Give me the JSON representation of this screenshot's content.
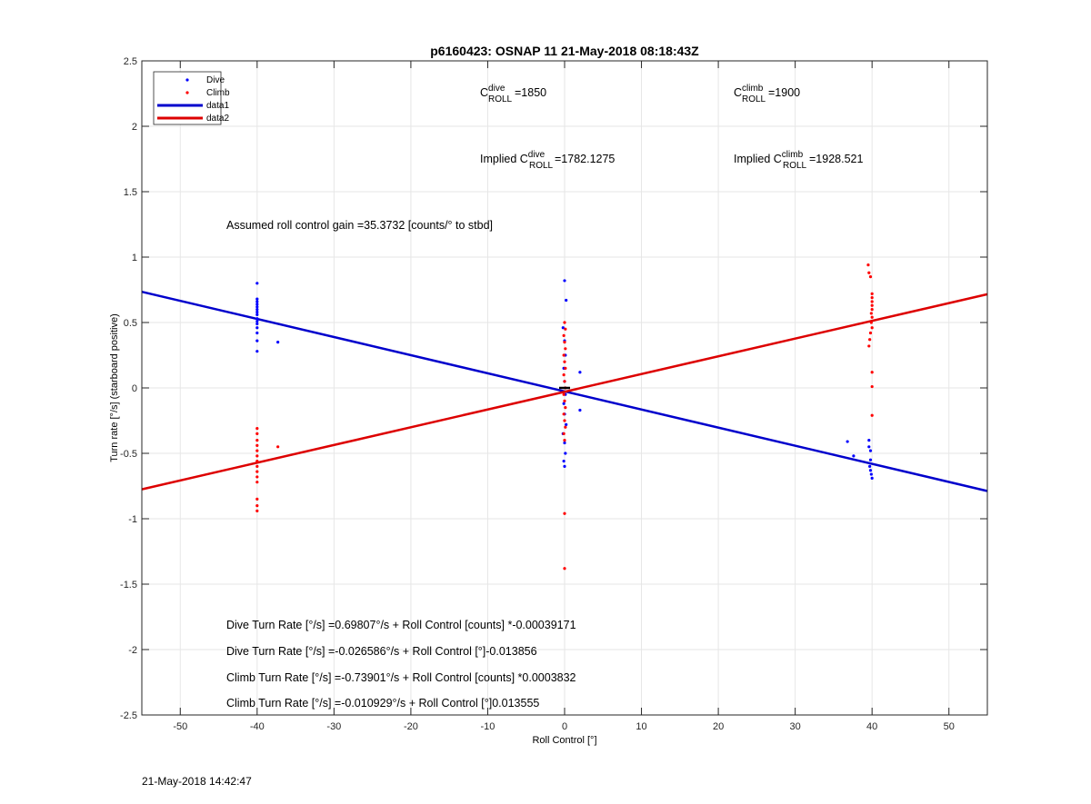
{
  "chart_data": {
    "type": "scatter",
    "title": "p6160423: OSNAP 11 21-May-2018 08:18:43Z",
    "xlabel": "Roll Control [°]",
    "ylabel": "Turn rate [°/s] (starboard positive)",
    "xlim": [
      -55,
      55
    ],
    "ylim": [
      -2.5,
      2.5
    ],
    "xticks": [
      -50,
      -40,
      -30,
      -20,
      -10,
      0,
      10,
      20,
      30,
      40,
      50
    ],
    "yticks": [
      -2.5,
      -2,
      -1.5,
      -1,
      -0.5,
      0,
      0.5,
      1,
      1.5,
      2,
      2.5
    ],
    "grid": true,
    "legend_position": "top-left",
    "series": [
      {
        "name": "Dive",
        "kind": "points",
        "color": "#0000ff",
        "points": [
          [
            -40,
            0.8
          ],
          [
            -40,
            0.68
          ],
          [
            -40,
            0.66
          ],
          [
            -40,
            0.64
          ],
          [
            -40,
            0.62
          ],
          [
            -40,
            0.6
          ],
          [
            -40,
            0.58
          ],
          [
            -40,
            0.56
          ],
          [
            -40,
            0.53
          ],
          [
            -40,
            0.51
          ],
          [
            -40,
            0.49
          ],
          [
            -40,
            0.46
          ],
          [
            -40,
            0.42
          ],
          [
            -40,
            0.36
          ],
          [
            -40,
            0.28
          ],
          [
            -37.3,
            0.35
          ],
          [
            0,
            0.82
          ],
          [
            0.2,
            0.67
          ],
          [
            -0.2,
            0.46
          ],
          [
            0,
            0.36
          ],
          [
            0.1,
            0.25
          ],
          [
            -0.1,
            0.15
          ],
          [
            0,
            0.05
          ],
          [
            0.1,
            -0.05
          ],
          [
            -0.1,
            -0.12
          ],
          [
            0,
            -0.2
          ],
          [
            0.2,
            -0.28
          ],
          [
            -0.2,
            -0.35
          ],
          [
            0,
            -0.42
          ],
          [
            0.1,
            -0.5
          ],
          [
            -0.1,
            -0.56
          ],
          [
            0,
            -0.6
          ],
          [
            2,
            0.12
          ],
          [
            2,
            -0.17
          ],
          [
            36.8,
            -0.41
          ],
          [
            37.6,
            -0.52
          ],
          [
            39.6,
            -0.4
          ],
          [
            39.6,
            -0.45
          ],
          [
            39.8,
            -0.48
          ],
          [
            39.8,
            -0.55
          ],
          [
            39.7,
            -0.6
          ],
          [
            39.8,
            -0.63
          ],
          [
            39.9,
            -0.66
          ],
          [
            40,
            -0.69
          ]
        ]
      },
      {
        "name": "Climb",
        "kind": "points",
        "color": "#ff0000",
        "points": [
          [
            -40,
            -0.31
          ],
          [
            -40,
            -0.35
          ],
          [
            -40,
            -0.4
          ],
          [
            -40,
            -0.44
          ],
          [
            -40,
            -0.48
          ],
          [
            -40,
            -0.52
          ],
          [
            -40,
            -0.56
          ],
          [
            -40,
            -0.6
          ],
          [
            -40,
            -0.64
          ],
          [
            -40,
            -0.68
          ],
          [
            -40,
            -0.72
          ],
          [
            -40,
            -0.85
          ],
          [
            -40,
            -0.9
          ],
          [
            -40,
            -0.94
          ],
          [
            -37.3,
            -0.45
          ],
          [
            0,
            0.5
          ],
          [
            0.1,
            0.45
          ],
          [
            -0.1,
            0.4
          ],
          [
            0,
            0.35
          ],
          [
            0.1,
            0.3
          ],
          [
            -0.1,
            0.25
          ],
          [
            0,
            0.2
          ],
          [
            0.1,
            0.15
          ],
          [
            -0.1,
            0.1
          ],
          [
            0,
            0.05
          ],
          [
            0.1,
            0
          ],
          [
            -0.1,
            -0.05
          ],
          [
            0,
            -0.1
          ],
          [
            0.1,
            -0.15
          ],
          [
            -0.1,
            -0.2
          ],
          [
            0,
            -0.25
          ],
          [
            0.1,
            -0.3
          ],
          [
            -0.1,
            -0.35
          ],
          [
            0,
            -0.4
          ],
          [
            0,
            -0.96
          ],
          [
            0,
            -1.38
          ],
          [
            39.5,
            0.94
          ],
          [
            39.6,
            0.88
          ],
          [
            39.8,
            0.85
          ],
          [
            40,
            0.72
          ],
          [
            40,
            0.69
          ],
          [
            40,
            0.66
          ],
          [
            40,
            0.63
          ],
          [
            40,
            0.6
          ],
          [
            39.9,
            0.57
          ],
          [
            40,
            0.54
          ],
          [
            39.9,
            0.5
          ],
          [
            40,
            0.46
          ],
          [
            39.8,
            0.42
          ],
          [
            39.7,
            0.37
          ],
          [
            39.6,
            0.32
          ],
          [
            40,
            0.12
          ],
          [
            40,
            0.01
          ],
          [
            40,
            -0.21
          ]
        ]
      },
      {
        "name": "data1",
        "kind": "line",
        "color": "#0000cc",
        "x": [
          -55,
          55
        ],
        "y": [
          0.735,
          -0.788
        ]
      },
      {
        "name": "data2",
        "kind": "line",
        "color": "#dd0000",
        "x": [
          -55,
          55
        ],
        "y": [
          -0.775,
          0.716
        ]
      }
    ],
    "annotations": {
      "c_dive_label": "C",
      "c_dive_sup": "dive",
      "c_dive_sub": "ROLL",
      "c_dive_value": "=1850",
      "c_climb_label": "C",
      "c_climb_sup": "climb",
      "c_climb_sub": "ROLL",
      "c_climb_value": "=1900",
      "implied_dive_prefix": "Implied C",
      "implied_dive_sup": "dive",
      "implied_dive_sub": "ROLL",
      "implied_dive_value": "=1782.1275",
      "implied_climb_prefix": "Implied C",
      "implied_climb_sup": "climb",
      "implied_climb_sub": "ROLL",
      "implied_climb_value": "=1928.521",
      "gain": "Assumed roll control gain =35.3732 [counts/° to stbd]",
      "eq1": "Dive Turn Rate [°/s] =0.69807°/s + Roll Control [counts] *-0.00039171",
      "eq2": "Dive Turn Rate [°/s] =-0.026586°/s + Roll Control [°]-0.013856",
      "eq3": "Climb Turn Rate [°/s] =-0.73901°/s + Roll Control [counts] *0.0003832",
      "eq4": "Climb Turn Rate [°/s] =-0.010929°/s + Roll Control [°]0.013555"
    }
  },
  "footer_timestamp": "21-May-2018 14:42:47"
}
